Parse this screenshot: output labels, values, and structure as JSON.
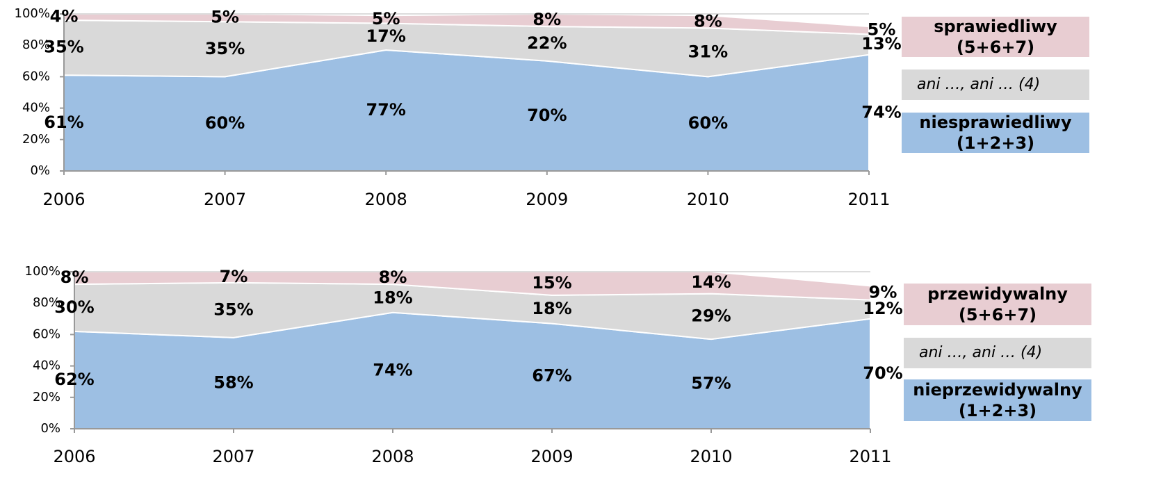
{
  "chart_data": [
    {
      "type": "area",
      "stacked": true,
      "categories": [
        "2006",
        "2007",
        "2008",
        "2009",
        "2010",
        "2011"
      ],
      "ylim": [
        0,
        100
      ],
      "yticks": [
        {
          "value": 0,
          "label": "0%"
        },
        {
          "value": 20,
          "label": "20%"
        },
        {
          "value": 40,
          "label": "40%"
        },
        {
          "value": 60,
          "label": "60%"
        },
        {
          "value": 80,
          "label": "80%"
        },
        {
          "value": 100,
          "label": "100%"
        }
      ],
      "series": [
        {
          "name": "niesprawiedliwy (1+2+3)",
          "color": "#9dbfe3",
          "values": [
            61,
            60,
            77,
            70,
            60,
            74
          ],
          "value_labels": [
            "61%",
            "60%",
            "77%",
            "70%",
            "60%",
            "74%"
          ]
        },
        {
          "name": "ani …, ani … (4)",
          "color": "#d9d9d9",
          "values": [
            35,
            35,
            17,
            22,
            31,
            13
          ],
          "value_labels": [
            "35%",
            "35%",
            "17%",
            "22%",
            "31%",
            "13%"
          ]
        },
        {
          "name": "sprawiedliwy (5+6+7)",
          "color": "#e8cdd2",
          "values": [
            4,
            5,
            5,
            8,
            8,
            5
          ],
          "value_labels": [
            "4%",
            "5%",
            "5%",
            "8%",
            "8%",
            "5%"
          ]
        }
      ]
    },
    {
      "type": "area",
      "stacked": true,
      "categories": [
        "2006",
        "2007",
        "2008",
        "2009",
        "2010",
        "2011"
      ],
      "ylim": [
        0,
        100
      ],
      "yticks": [
        {
          "value": 0,
          "label": "0%"
        },
        {
          "value": 20,
          "label": "20%"
        },
        {
          "value": 40,
          "label": "40%"
        },
        {
          "value": 60,
          "label": "60%"
        },
        {
          "value": 80,
          "label": "80%"
        },
        {
          "value": 100,
          "label": "100%"
        }
      ],
      "series": [
        {
          "name": "nieprzewidywalny (1+2+3)",
          "color": "#9dbfe3",
          "values": [
            62,
            58,
            74,
            67,
            57,
            70
          ],
          "value_labels": [
            "62%",
            "58%",
            "74%",
            "67%",
            "57%",
            "70%"
          ]
        },
        {
          "name": "ani …, ani … (4)",
          "color": "#d9d9d9",
          "values": [
            30,
            35,
            18,
            18,
            29,
            12
          ],
          "value_labels": [
            "30%",
            "35%",
            "18%",
            "18%",
            "29%",
            "12%"
          ]
        },
        {
          "name": "przewidywalny (5+6+7)",
          "color": "#e8cdd2",
          "values": [
            8,
            7,
            8,
            15,
            14,
            9
          ],
          "value_labels": [
            "8%",
            "7%",
            "8%",
            "15%",
            "14%",
            "9%"
          ]
        }
      ]
    }
  ]
}
